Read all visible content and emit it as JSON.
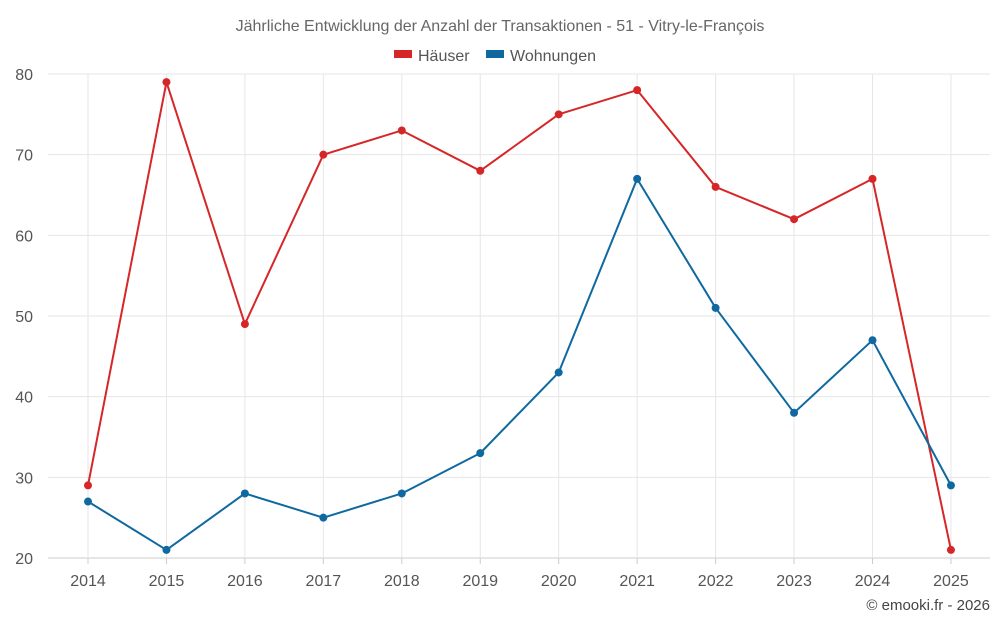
{
  "chart_data": {
    "type": "line",
    "title": "Jährliche Entwicklung der Anzahl der Transaktionen - 51 - Vitry-le-François",
    "x": [
      "2014",
      "2015",
      "2016",
      "2017",
      "2018",
      "2019",
      "2020",
      "2021",
      "2022",
      "2023",
      "2024",
      "2025"
    ],
    "ylim": [
      20,
      80
    ],
    "yticks": [
      "20",
      "30",
      "40",
      "50",
      "60",
      "70",
      "80"
    ],
    "grid": true,
    "legend_position": "top-center",
    "series": [
      {
        "name": "Häuser",
        "color": "#d62728",
        "values": [
          29,
          79,
          49,
          70,
          73,
          68,
          75,
          78,
          66,
          62,
          67,
          21
        ]
      },
      {
        "name": "Wohnungen",
        "color": "#0f69a0",
        "values": [
          27,
          21,
          28,
          25,
          28,
          33,
          43,
          67,
          51,
          38,
          47,
          29
        ]
      }
    ],
    "credit": "© emooki.fr - 2026"
  }
}
